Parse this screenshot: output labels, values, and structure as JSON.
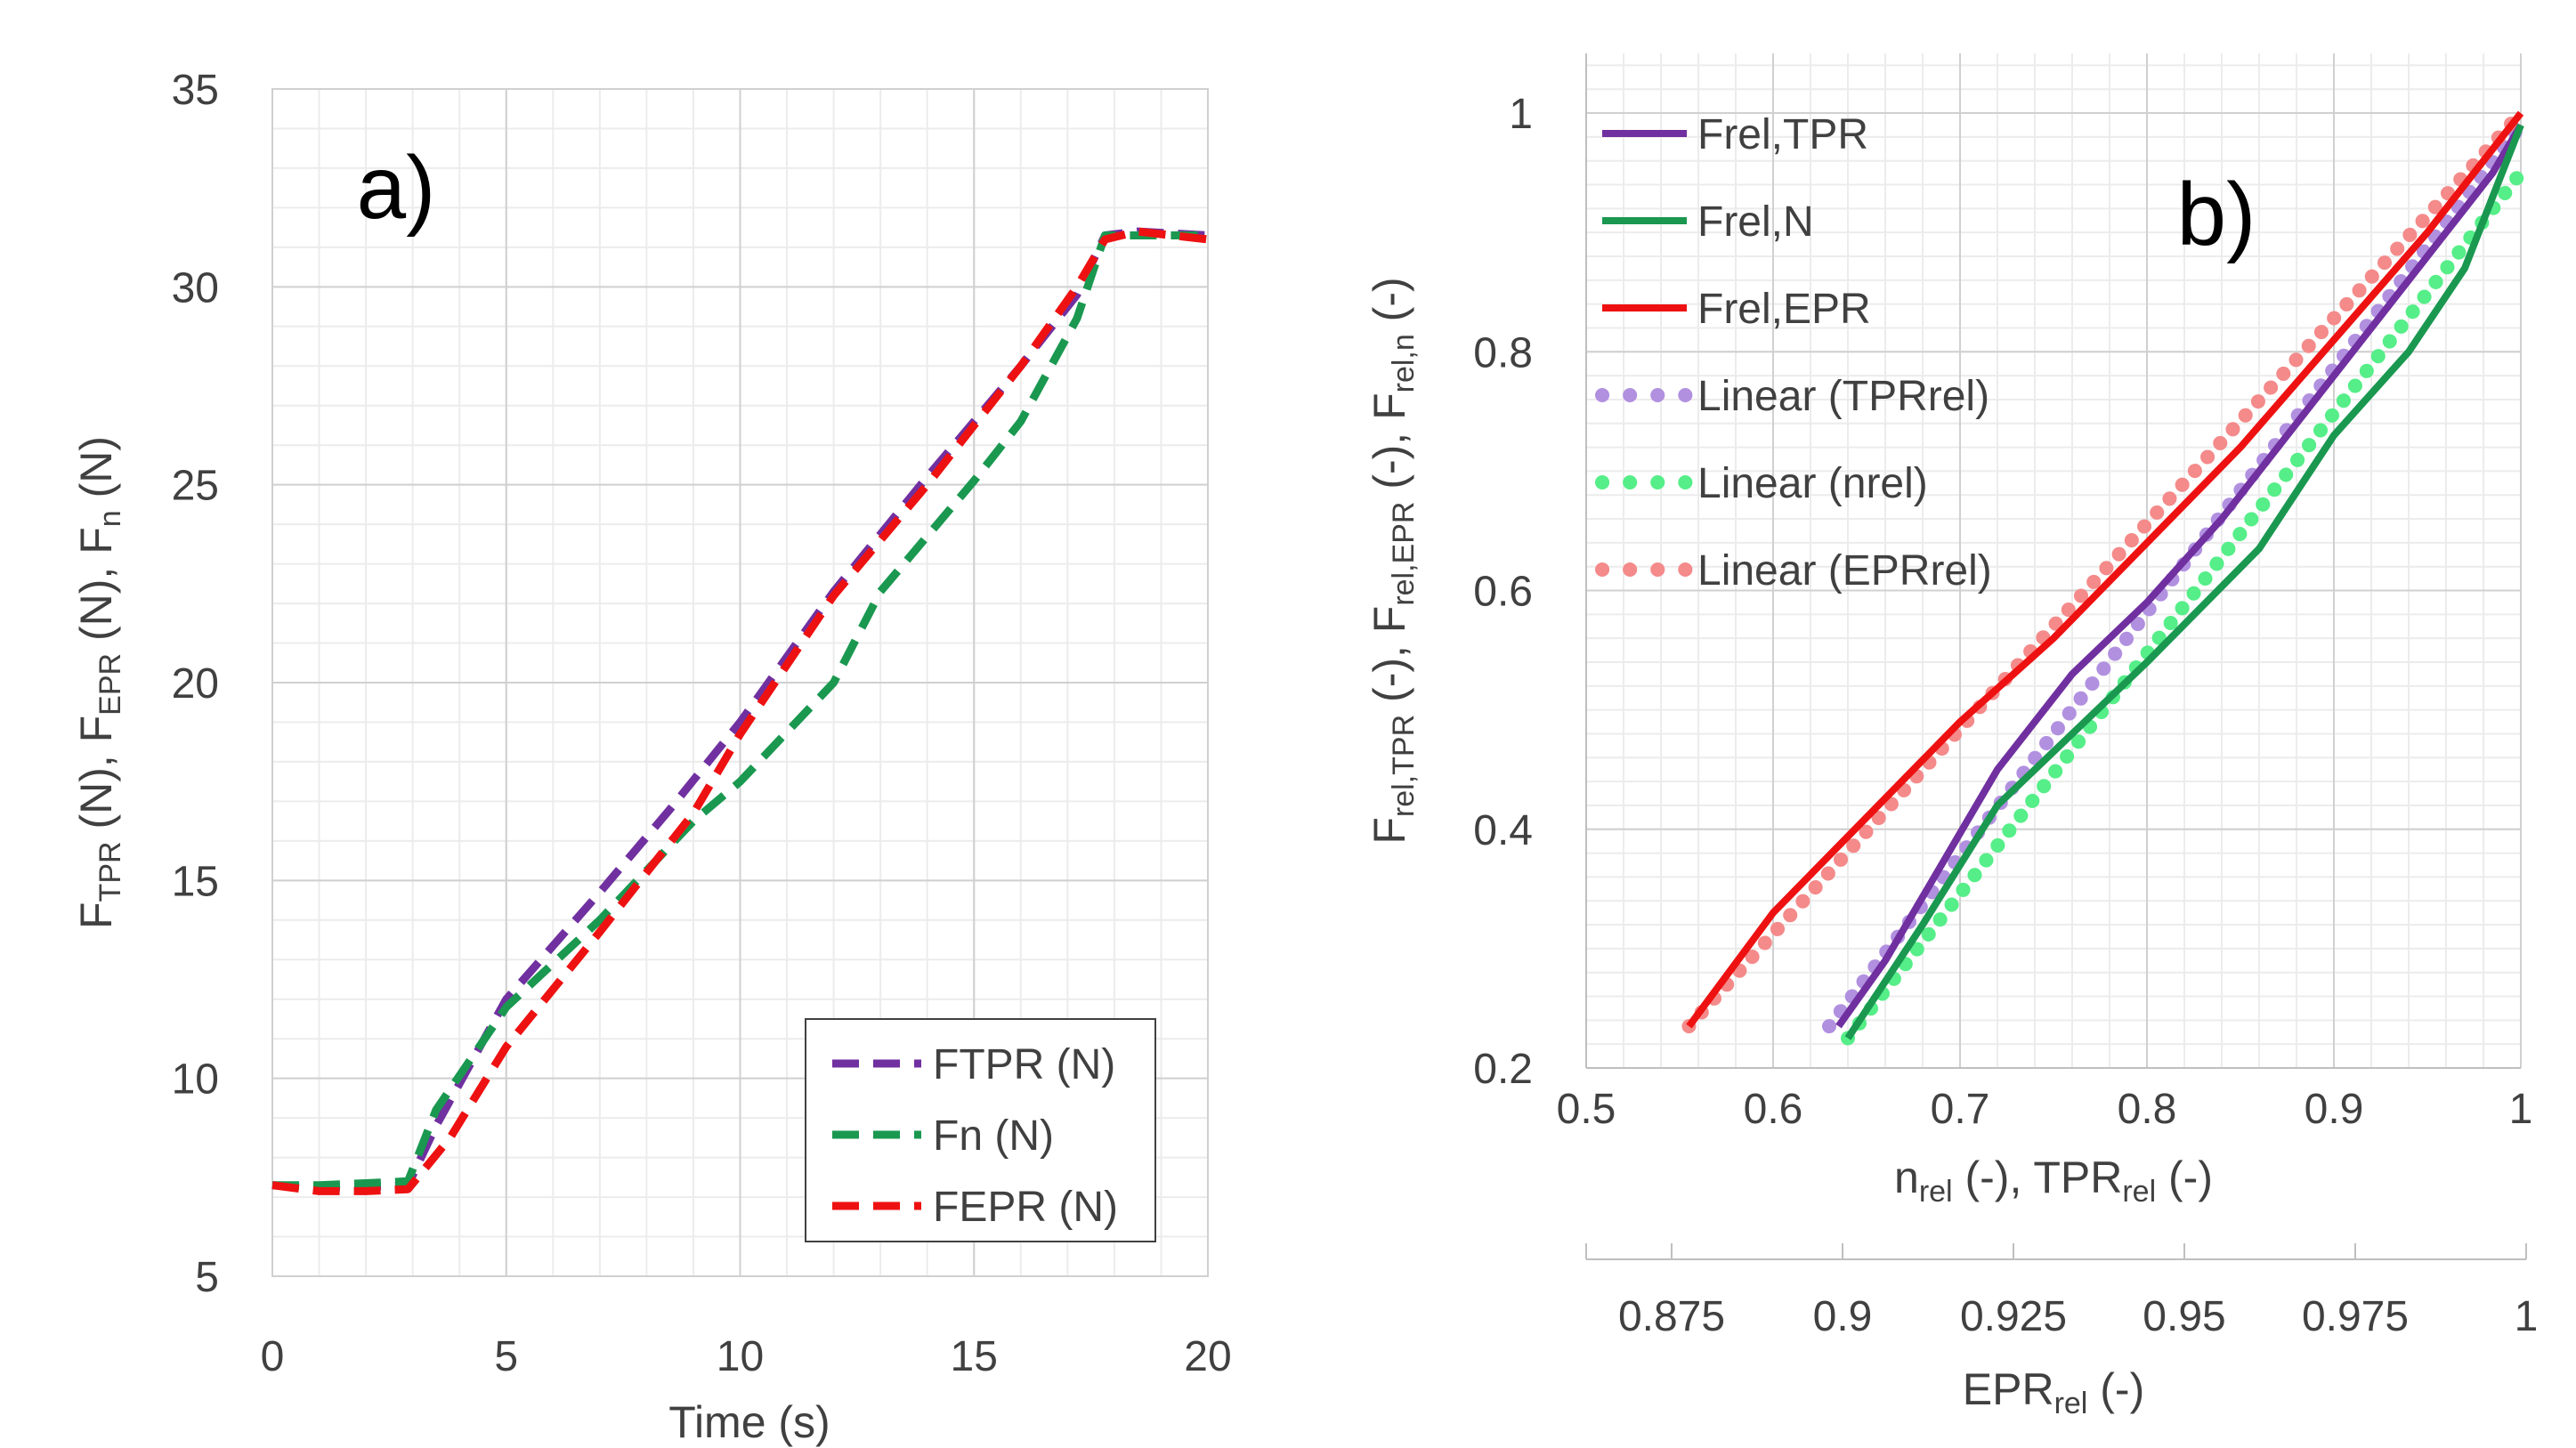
{
  "chart_data": [
    {
      "type": "line",
      "panel_label": "a)",
      "xlabel": "Time (s)",
      "ylabel": {
        "parts": [
          {
            "t": "F",
            "sub": false
          },
          {
            "t": "TPR",
            "sub": true
          },
          {
            "t": " (N), F",
            "sub": false
          },
          {
            "t": "EPR",
            "sub": true
          },
          {
            "t": " (N), F",
            "sub": false
          },
          {
            "t": "n",
            "sub": true
          },
          {
            "t": " (N)",
            "sub": false
          }
        ]
      },
      "xlim": [
        0,
        20
      ],
      "ylim": [
        5,
        35
      ],
      "x_ticks": [
        0,
        5,
        10,
        15,
        20
      ],
      "y_ticks": [
        5,
        10,
        15,
        20,
        25,
        30,
        35
      ],
      "grid": true,
      "legend_position": "bottom-right",
      "series": [
        {
          "name": "FTPR (N)",
          "color": "#7030A0",
          "style": "dashed",
          "x": [
            0,
            1,
            2,
            2.9,
            3.5,
            5,
            7,
            8.5,
            10,
            12,
            14,
            16,
            17.2,
            17.8,
            18.5,
            20
          ],
          "y": [
            7.3,
            7.25,
            7.25,
            7.3,
            8.8,
            12.0,
            14.7,
            16.8,
            19.0,
            22.3,
            25.2,
            28.0,
            29.8,
            31.3,
            31.4,
            31.3
          ]
        },
        {
          "name": "Fn (N)",
          "color": "#1A9850",
          "style": "dashed",
          "x": [
            0,
            1,
            2,
            2.9,
            3.5,
            5,
            7,
            9,
            10,
            12,
            13,
            15,
            16,
            17.2,
            17.8,
            18.5,
            20
          ],
          "y": [
            7.3,
            7.3,
            7.35,
            7.4,
            9.2,
            11.8,
            14.0,
            16.5,
            17.5,
            20.0,
            22.3,
            25.1,
            26.6,
            29.2,
            31.3,
            31.3,
            31.3
          ]
        },
        {
          "name": "FEPR (N)",
          "color": "#EE1111",
          "style": "dashed",
          "x": [
            0,
            1,
            2,
            2.9,
            3.8,
            5,
            7,
            9,
            10,
            12,
            14,
            16,
            17.2,
            17.8,
            18.5,
            20
          ],
          "y": [
            7.3,
            7.15,
            7.15,
            7.2,
            8.5,
            10.8,
            13.7,
            16.7,
            18.7,
            22.2,
            25.0,
            28.0,
            30.0,
            31.2,
            31.4,
            31.2
          ]
        }
      ]
    },
    {
      "type": "line",
      "panel_label": "b)",
      "xlabel": {
        "parts": [
          {
            "t": "n",
            "sub": false
          },
          {
            "t": "rel",
            "sub": true
          },
          {
            "t": " (-), TPR",
            "sub": false
          },
          {
            "t": "rel",
            "sub": true
          },
          {
            "t": " (-)",
            "sub": false
          }
        ]
      },
      "ylabel": {
        "parts": [
          {
            "t": "F",
            "sub": false
          },
          {
            "t": "rel,TPR",
            "sub": true
          },
          {
            "t": " (-), F",
            "sub": false
          },
          {
            "t": "rel,EPR",
            "sub": true
          },
          {
            "t": " (-), F",
            "sub": false
          },
          {
            "t": "rel,n",
            "sub": true
          },
          {
            "t": " (-)",
            "sub": false
          }
        ]
      },
      "xlim": [
        0.5,
        1
      ],
      "ylim": [
        0.2,
        1.05
      ],
      "x_ticks": [
        "0.5",
        "0.6",
        "0.7",
        "0.8",
        "0.9",
        "1"
      ],
      "y_ticks": [
        "0.2",
        "0.4",
        "0.6",
        "0.8",
        "1"
      ],
      "secondary_x": {
        "label": {
          "parts": [
            {
              "t": "EPR",
              "sub": false
            },
            {
              "t": "rel",
              "sub": true
            },
            {
              "t": " (-)",
              "sub": false
            }
          ]
        },
        "xlim": [
          0.8625,
          1.0
        ],
        "ticks": [
          "0.875",
          "0.9",
          "0.925",
          "0.95",
          "0.975",
          "1"
        ]
      },
      "grid": true,
      "legend_position": "top-left",
      "series": [
        {
          "name": "Frel,TPR",
          "color": "#7030A0",
          "style": "solid",
          "x": [
            0.635,
            0.66,
            0.69,
            0.72,
            0.76,
            0.8,
            0.84,
            0.88,
            0.92,
            0.96,
            0.985,
            1.0
          ],
          "y": [
            0.235,
            0.29,
            0.37,
            0.45,
            0.53,
            0.59,
            0.66,
            0.74,
            0.82,
            0.9,
            0.95,
            0.99
          ]
        },
        {
          "name": "Frel,N",
          "color": "#1A9850",
          "style": "solid",
          "x": [
            0.64,
            0.68,
            0.72,
            0.76,
            0.8,
            0.86,
            0.9,
            0.94,
            0.97,
            0.99,
            1.0
          ],
          "y": [
            0.225,
            0.32,
            0.42,
            0.48,
            0.54,
            0.635,
            0.73,
            0.8,
            0.87,
            0.95,
            0.99
          ]
        },
        {
          "name": "Frel,EPR",
          "color": "#EE1111",
          "style": "solid",
          "x": [
            0.555,
            0.6,
            0.65,
            0.7,
            0.75,
            0.8,
            0.85,
            0.9,
            0.95,
            1.0
          ],
          "y": [
            0.235,
            0.33,
            0.41,
            0.49,
            0.56,
            0.64,
            0.72,
            0.81,
            0.9,
            1.0
          ]
        },
        {
          "name": "Linear (TPRrel)",
          "color": "#B190E0",
          "style": "dotted",
          "x": [
            0.63,
            1.0
          ],
          "y": [
            0.235,
            0.99
          ]
        },
        {
          "name": "Linear (nrel)",
          "color": "#55EE88",
          "style": "dotted",
          "x": [
            0.64,
            1.0
          ],
          "y": [
            0.225,
            0.95
          ]
        },
        {
          "name": "Linear (EPRrel)",
          "color": "#F48A8A",
          "style": "dotted",
          "x": [
            0.555,
            1.0
          ],
          "y": [
            0.235,
            1.0
          ]
        }
      ]
    }
  ]
}
